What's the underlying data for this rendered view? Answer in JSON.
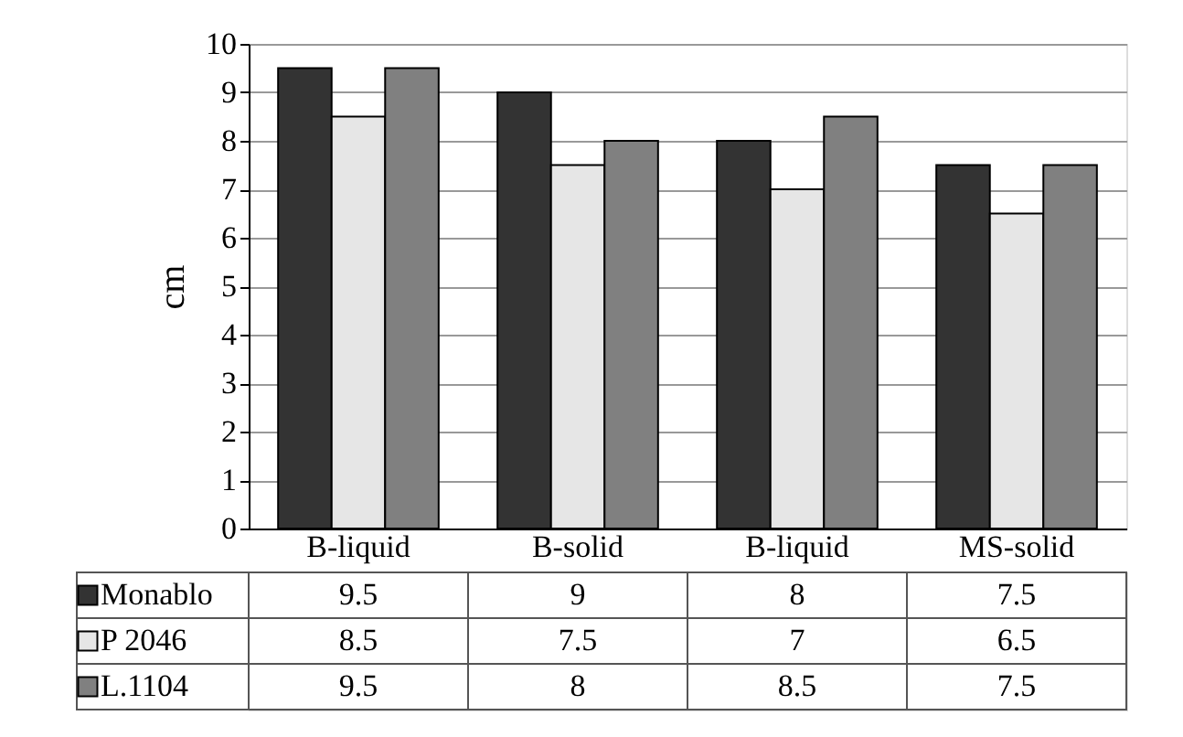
{
  "chart_data": {
    "type": "bar",
    "ylabel": "cm",
    "categories": [
      "B-liquid",
      "B-solid",
      "B-liquid",
      "MS-solid"
    ],
    "series": [
      {
        "name": "Monablo",
        "color": "#333333",
        "values": [
          9.5,
          9,
          8,
          7.5
        ]
      },
      {
        "name": "P 2046",
        "color": "#e6e6e6",
        "values": [
          8.5,
          7.5,
          7,
          6.5
        ]
      },
      {
        "name": "L.1104",
        "color": "#808080",
        "values": [
          9.5,
          8,
          8.5,
          7.5
        ]
      }
    ],
    "ylim": [
      0,
      10
    ],
    "yticks": [
      0,
      1,
      2,
      3,
      4,
      5,
      6,
      7,
      8,
      9,
      10
    ],
    "grid": "y",
    "data_labels": true,
    "legend": "bottom left"
  }
}
